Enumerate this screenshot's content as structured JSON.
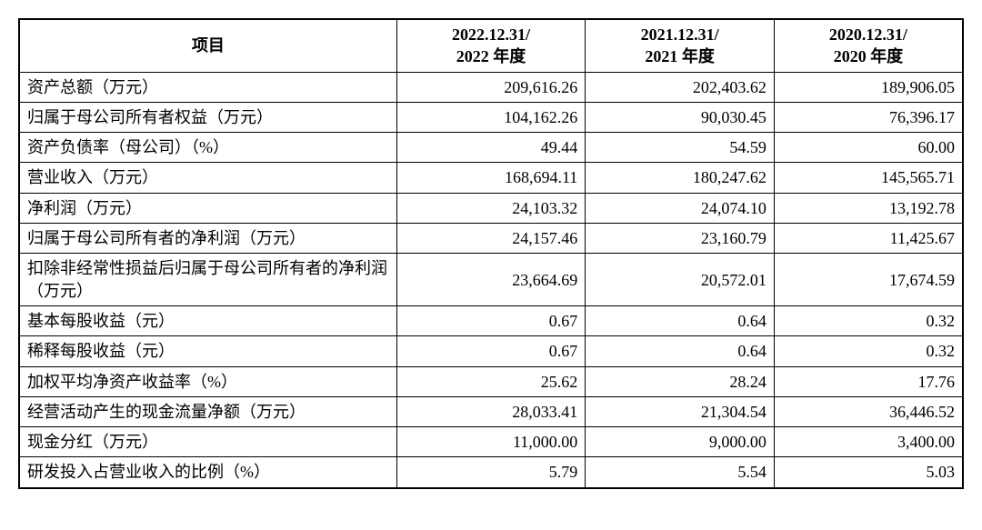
{
  "table": {
    "type": "table",
    "background_color": "#ffffff",
    "border_color": "#000000",
    "outer_border_width": 2,
    "inner_border_width": 1,
    "font_family": "SimSun",
    "header_fontsize": 18,
    "body_fontsize": 18,
    "header_fontweight": "bold",
    "body_fontweight": "normal",
    "text_color": "#000000",
    "column_widths_pct": [
      40,
      20,
      20,
      20
    ],
    "header_align": "center",
    "label_align": "left",
    "value_align": "right",
    "columns": [
      {
        "label_line1": "项目",
        "label_line2": ""
      },
      {
        "label_line1": "2022.12.31/",
        "label_line2": "2022 年度"
      },
      {
        "label_line1": "2021.12.31/",
        "label_line2": "2021 年度"
      },
      {
        "label_line1": "2020.12.31/",
        "label_line2": "2020 年度"
      }
    ],
    "rows": [
      {
        "label": "资产总额（万元）",
        "v2022": "209,616.26",
        "v2021": "202,403.62",
        "v2020": "189,906.05"
      },
      {
        "label": "归属于母公司所有者权益（万元）",
        "v2022": "104,162.26",
        "v2021": "90,030.45",
        "v2020": "76,396.17"
      },
      {
        "label": "资产负债率（母公司）（%）",
        "v2022": "49.44",
        "v2021": "54.59",
        "v2020": "60.00"
      },
      {
        "label": "营业收入（万元）",
        "v2022": "168,694.11",
        "v2021": "180,247.62",
        "v2020": "145,565.71"
      },
      {
        "label": "净利润（万元）",
        "v2022": "24,103.32",
        "v2021": "24,074.10",
        "v2020": "13,192.78"
      },
      {
        "label": "归属于母公司所有者的净利润（万元）",
        "v2022": "24,157.46",
        "v2021": "23,160.79",
        "v2020": "11,425.67"
      },
      {
        "label": "扣除非经常性损益后归属于母公司所有者的净利润（万元）",
        "v2022": "23,664.69",
        "v2021": "20,572.01",
        "v2020": "17,674.59"
      },
      {
        "label": "基本每股收益（元）",
        "v2022": "0.67",
        "v2021": "0.64",
        "v2020": "0.32"
      },
      {
        "label": "稀释每股收益（元）",
        "v2022": "0.67",
        "v2021": "0.64",
        "v2020": "0.32"
      },
      {
        "label": "加权平均净资产收益率（%）",
        "v2022": "25.62",
        "v2021": "28.24",
        "v2020": "17.76"
      },
      {
        "label": "经营活动产生的现金流量净额（万元）",
        "v2022": "28,033.41",
        "v2021": "21,304.54",
        "v2020": "36,446.52"
      },
      {
        "label": "现金分红（万元）",
        "v2022": "11,000.00",
        "v2021": "9,000.00",
        "v2020": "3,400.00"
      },
      {
        "label": "研发投入占营业收入的比例（%）",
        "v2022": "5.79",
        "v2021": "5.54",
        "v2020": "5.03"
      }
    ]
  }
}
